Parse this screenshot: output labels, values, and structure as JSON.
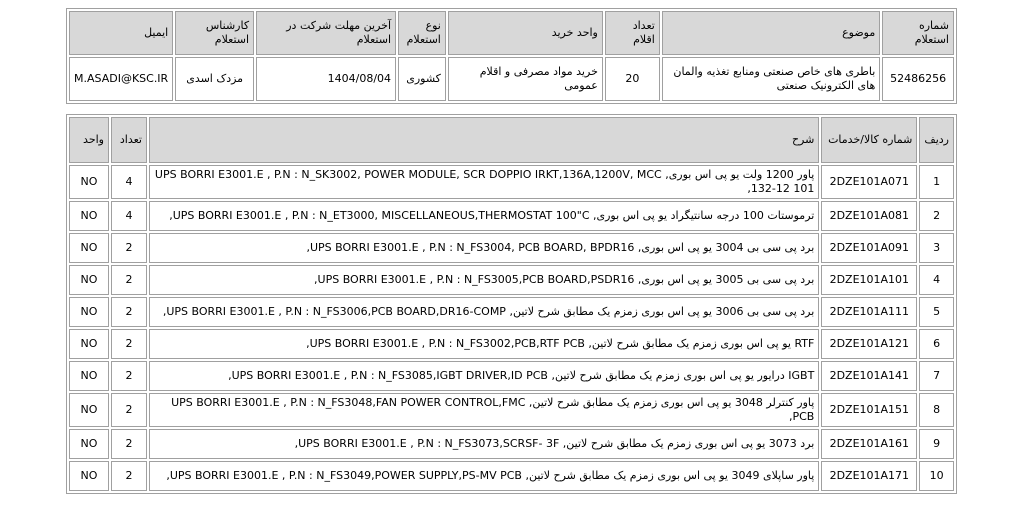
{
  "inquiry": {
    "headers": [
      "شماره استعلام",
      "موضوع",
      "تعداد اقلام",
      "واحد خرید",
      "نوع استعلام",
      "آخرین مهلت شرکت در استعلام",
      "کارشناس استعلام",
      "ایمیل"
    ],
    "number": "52486256",
    "subject": "باطری های خاص صنعتی ومنابع تغذیه والمان های الکترونیک صنعتی",
    "item_count": "20",
    "purchase_unit": "خرید مواد مصرفی و اقلام عمومی",
    "type": "کشوری",
    "deadline": "1404/08/04",
    "expert": "مزدک اسدی",
    "email": "M.ASADI@KSC.IR"
  },
  "items": {
    "headers": [
      "ردیف",
      "شماره کالا/خدمات",
      "شرح",
      "تعداد",
      "واحد"
    ],
    "rows": [
      {
        "row": "1",
        "code": "2DZE101A071",
        "desc": "پاور 1200 ولت یو پی اس بوری, UPS BORRI E3001.E , P.N : N_SK3002, POWER MODULE, SCR DOPPIO IRKT,136A,1200V, MCC 132-12 101,",
        "qty": "4",
        "unit": "NO"
      },
      {
        "row": "2",
        "code": "2DZE101A081",
        "desc": "ترموستات 100 درجه سانتیگراد یو پی اس بوری, UPS BORRI E3001.E , P.N : N_ET3000, MISCELLANEOUS,THERMOSTAT 100\"C,",
        "qty": "4",
        "unit": "NO"
      },
      {
        "row": "3",
        "code": "2DZE101A091",
        "desc": "برد پی سی بی 3004 یو پی اس بوری, UPS BORRI E3001.E , P.N : N_FS3004, PCB BOARD, BPDR16,",
        "qty": "2",
        "unit": "NO"
      },
      {
        "row": "4",
        "code": "2DZE101A101",
        "desc": "برد پی سی بی 3005 یو پی اس بوری, UPS BORRI E3001.E , P.N : N_FS3005,PCB BOARD,PSDR16,",
        "qty": "2",
        "unit": "NO"
      },
      {
        "row": "5",
        "code": "2DZE101A111",
        "desc": "برد پی سی بی 3006 یو پی اس بوری زمزم یک مطابق شرح لاتین, UPS BORRI E3001.E , P.N : N_FS3006,PCB BOARD,DR16-COMP,",
        "qty": "2",
        "unit": "NO"
      },
      {
        "row": "6",
        "code": "2DZE101A121",
        "desc": "RTF یو پی اس بوری زمزم یک مطابق شرح لاتین, UPS BORRI E3001.E , P.N : N_FS3002,PCB,RTF PCB,",
        "qty": "2",
        "unit": "NO"
      },
      {
        "row": "7",
        "code": "2DZE101A141",
        "desc": "IGBT درایور یو پی اس بوری زمزم یک مطابق شرح لاتین, UPS BORRI E3001.E , P.N : N_FS3085,IGBT DRIVER,ID PCB,",
        "qty": "2",
        "unit": "NO"
      },
      {
        "row": "8",
        "code": "2DZE101A151",
        "desc": "پاور کنترلر 3048 یو پی اس بوری زمزم یک مطابق شرح لاتین, UPS BORRI E3001.E , P.N : N_FS3048,FAN POWER CONTROL,FMC PCB,",
        "qty": "2",
        "unit": "NO"
      },
      {
        "row": "9",
        "code": "2DZE101A161",
        "desc": "برد 3073 یو پی اس بوری زمزم یک مطابق شرح لاتین, UPS BORRI E3001.E , P.N : N_FS3073,SCRSF- 3F,",
        "qty": "2",
        "unit": "NO"
      },
      {
        "row": "10",
        "code": "2DZE101A171",
        "desc": "پاور ساپلای 3049 یو پی اس بوری زمزم یک مطابق شرح لاتین, UPS BORRI E3001.E , P.N : N_FS3049,POWER SUPPLY,PS-MV PCB,",
        "qty": "2",
        "unit": "NO"
      }
    ]
  }
}
